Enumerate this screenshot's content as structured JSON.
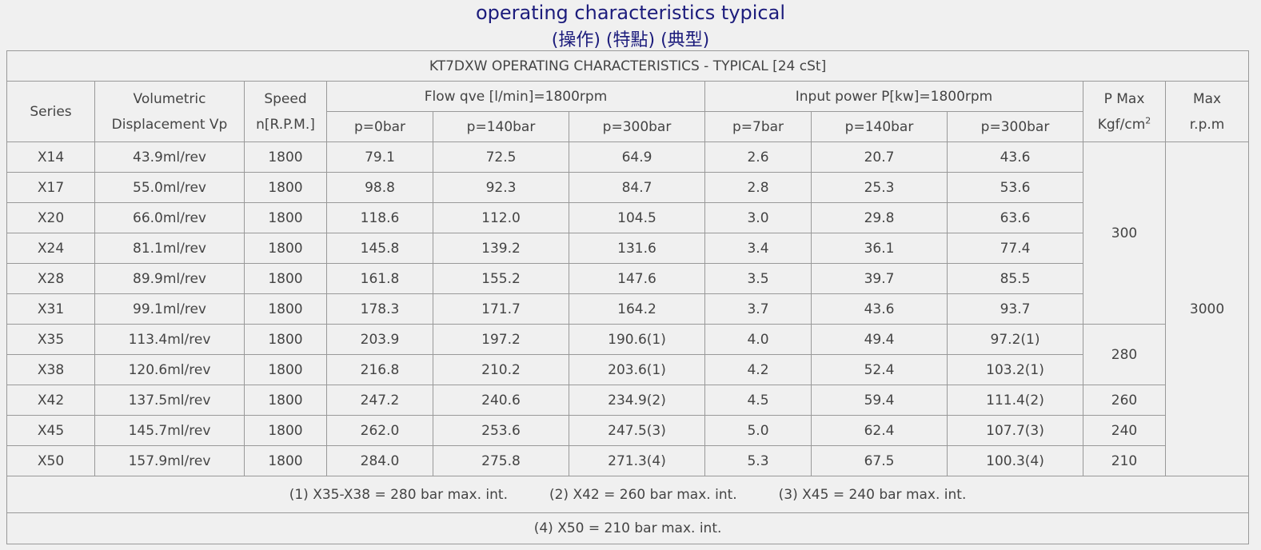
{
  "header": {
    "title": "operating characteristics typical",
    "subtitle": "(操作) (特點) (典型)"
  },
  "table": {
    "caption": "KT7DXW OPERATING CHARACTERISTICS - TYPICAL [24 cSt]",
    "columns": {
      "series": "Series",
      "displacement": [
        "Volumetric",
        "Displacement Vp"
      ],
      "speed": [
        "Speed",
        "n[R.P.M.]"
      ],
      "flow": "Flow qve [l/min]=1800rpm",
      "flow_sub": [
        "p=0bar",
        "p=140bar",
        "p=300bar"
      ],
      "power": "Input power P[kw]=1800rpm",
      "power_sub": [
        "p=7bar",
        "p=140bar",
        "p=300bar"
      ],
      "pmax": [
        "P Max",
        "Kgf/cm",
        "2"
      ],
      "maxrpm": [
        "Max",
        "r.p.m"
      ]
    },
    "rows": [
      [
        "X14",
        "43.9ml/rev",
        "1800",
        "79.1",
        "72.5",
        "64.9",
        "2.6",
        "20.7",
        "43.6"
      ],
      [
        "X17",
        "55.0ml/rev",
        "1800",
        "98.8",
        "92.3",
        "84.7",
        "2.8",
        "25.3",
        "53.6"
      ],
      [
        "X20",
        "66.0ml/rev",
        "1800",
        "118.6",
        "112.0",
        "104.5",
        "3.0",
        "29.8",
        "63.6"
      ],
      [
        "X24",
        "81.1ml/rev",
        "1800",
        "145.8",
        "139.2",
        "131.6",
        "3.4",
        "36.1",
        "77.4"
      ],
      [
        "X28",
        "89.9ml/rev",
        "1800",
        "161.8",
        "155.2",
        "147.6",
        "3.5",
        "39.7",
        "85.5"
      ],
      [
        "X31",
        "99.1ml/rev",
        "1800",
        "178.3",
        "171.7",
        "164.2",
        "3.7",
        "43.6",
        "93.7"
      ],
      [
        "X35",
        "113.4ml/rev",
        "1800",
        "203.9",
        "197.2",
        "190.6(1)",
        "4.0",
        "49.4",
        "97.2(1)"
      ],
      [
        "X38",
        "120.6ml/rev",
        "1800",
        "216.8",
        "210.2",
        "203.6(1)",
        "4.2",
        "52.4",
        "103.2(1)"
      ],
      [
        "X42",
        "137.5ml/rev",
        "1800",
        "247.2",
        "240.6",
        "234.9(2)",
        "4.5",
        "59.4",
        "111.4(2)"
      ],
      [
        "X45",
        "145.7ml/rev",
        "1800",
        "262.0",
        "253.6",
        "247.5(3)",
        "5.0",
        "62.4",
        "107.7(3)"
      ],
      [
        "X50",
        "157.9ml/rev",
        "1800",
        "284.0",
        "275.8",
        "271.3(4)",
        "5.3",
        "67.5",
        "100.3(4)"
      ]
    ],
    "pmax": [
      "300",
      "280",
      "260",
      "240",
      "210"
    ],
    "maxrpm": "3000",
    "notes": [
      [
        "(1) X35-X38 = 280 bar max. int.",
        "(2) X42 = 260 bar max. int.",
        "(3) X45 = 240 bar max. int."
      ],
      [
        "(4) X50 = 210 bar max. int."
      ]
    ]
  }
}
